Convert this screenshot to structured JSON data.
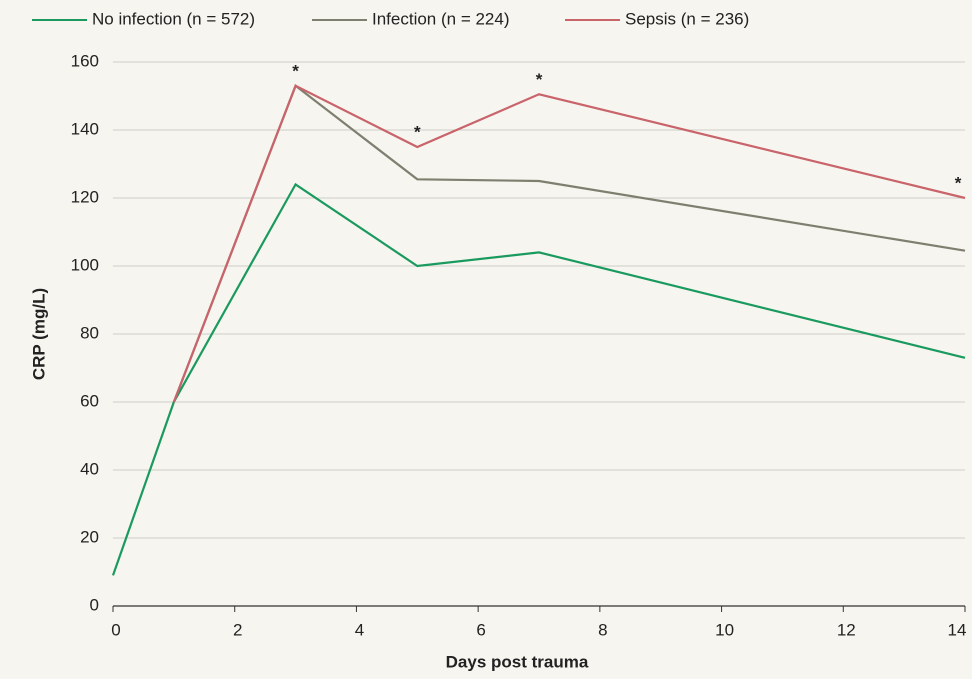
{
  "chart_data": {
    "type": "line",
    "x_label": "Days post trauma",
    "y_label": "CRP (mg/L)",
    "x": [
      0,
      1,
      3,
      5,
      7,
      14
    ],
    "series": [
      {
        "name": "No infection (n = 572)",
        "color": "#1a9a5e",
        "values": [
          9,
          60,
          124,
          100,
          104,
          73
        ]
      },
      {
        "name": "Infection (n = 224)",
        "color": "#7f7f70",
        "values": [
          null,
          60,
          153,
          125.5,
          125,
          104.5
        ]
      },
      {
        "name": "Sepsis (n = 236)",
        "color": "#c8646a",
        "values": [
          null,
          60,
          153,
          135,
          150.5,
          120
        ]
      }
    ],
    "annotations": [
      {
        "text": "*",
        "x": 3,
        "y": 153
      },
      {
        "text": "*",
        "x": 5,
        "y": 135
      },
      {
        "text": "*",
        "x": 7,
        "y": 150.5
      },
      {
        "text": "*",
        "x": 14,
        "y": 120
      }
    ],
    "xlim": [
      0,
      14
    ],
    "xticks": [
      0,
      2,
      4,
      6,
      8,
      10,
      12,
      14
    ],
    "ylim": [
      0,
      160
    ],
    "yticks": [
      0,
      20,
      40,
      60,
      80,
      100,
      120,
      140,
      160
    ],
    "grid": true,
    "legend": "top"
  }
}
